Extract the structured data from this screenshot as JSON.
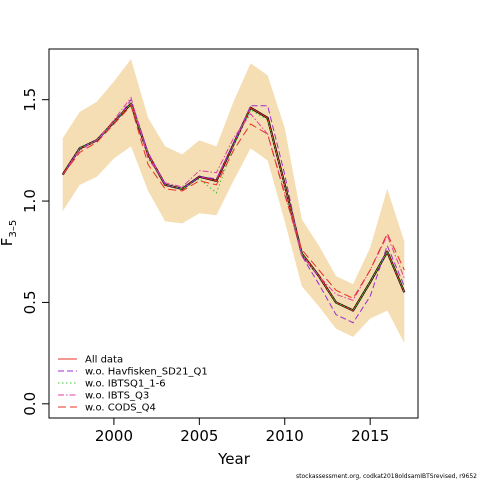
{
  "chart_data": {
    "type": "line",
    "xlabel": "Year",
    "ylabel": "F",
    "ylabel_sub": "3–5",
    "xlim": [
      1996.2,
      2017.8
    ],
    "ylim": [
      -0.07,
      1.75
    ],
    "xticks": [
      2000,
      2005,
      2010,
      2015
    ],
    "yticks": [
      0.0,
      0.5,
      1.0,
      1.5
    ],
    "ytick_labels": [
      "0.0",
      "0.5",
      "1.0",
      "1.5"
    ],
    "x": [
      1997,
      1998,
      1999,
      2000,
      2001,
      2002,
      2003,
      2004,
      2005,
      2006,
      2007,
      2008,
      2009,
      2010,
      2011,
      2012,
      2013,
      2014,
      2015,
      2016,
      2017
    ],
    "band": {
      "color": "#f5deb3",
      "upper": [
        1.31,
        1.44,
        1.49,
        1.59,
        1.7,
        1.41,
        1.27,
        1.23,
        1.3,
        1.27,
        1.49,
        1.68,
        1.62,
        1.36,
        0.91,
        0.78,
        0.63,
        0.59,
        0.77,
        1.06,
        0.8
      ],
      "lower": [
        0.95,
        1.08,
        1.12,
        1.21,
        1.27,
        1.05,
        0.9,
        0.89,
        0.94,
        0.93,
        1.1,
        1.26,
        1.2,
        0.9,
        0.58,
        0.48,
        0.37,
        0.33,
        0.42,
        0.46,
        0.3
      ]
    },
    "main_line": {
      "color": "#000000",
      "values": [
        1.13,
        1.26,
        1.3,
        1.39,
        1.48,
        1.23,
        1.08,
        1.06,
        1.12,
        1.1,
        1.28,
        1.46,
        1.41,
        1.08,
        0.74,
        0.63,
        0.5,
        0.46,
        0.6,
        0.75,
        0.55
      ]
    },
    "series": [
      {
        "name": "All data",
        "color": "#e8322a",
        "dash": "",
        "values": [
          1.13,
          1.26,
          1.3,
          1.39,
          1.48,
          1.23,
          1.08,
          1.06,
          1.12,
          1.1,
          1.28,
          1.46,
          1.41,
          1.08,
          0.74,
          0.63,
          0.5,
          0.46,
          0.6,
          0.75,
          0.55
        ]
      },
      {
        "name": "w.o. Havfisken_SD21_Q1",
        "color": "#9d2bd6",
        "dash": "6,3",
        "values": [
          1.13,
          1.26,
          1.3,
          1.38,
          1.5,
          1.24,
          1.08,
          1.06,
          1.12,
          1.11,
          1.28,
          1.47,
          1.47,
          1.13,
          0.73,
          0.59,
          0.44,
          0.4,
          0.53,
          0.78,
          0.58
        ]
      },
      {
        "name": "w.o. IBTSQ1_1-6",
        "color": "#3cc23c",
        "dash": "1.5,2.5",
        "values": [
          1.13,
          1.26,
          1.3,
          1.39,
          1.48,
          1.23,
          1.08,
          1.06,
          1.11,
          1.04,
          1.27,
          1.45,
          1.4,
          1.07,
          0.74,
          0.63,
          0.5,
          0.46,
          0.6,
          0.75,
          0.55
        ]
      },
      {
        "name": "w.o. IBTS_Q3",
        "color": "#e040a0",
        "dash": "6,2,1.5,2",
        "values": [
          1.13,
          1.25,
          1.3,
          1.4,
          1.51,
          1.21,
          1.09,
          1.07,
          1.15,
          1.14,
          1.31,
          1.43,
          1.33,
          1.04,
          0.73,
          0.63,
          0.54,
          0.51,
          0.66,
          0.83,
          0.62
        ]
      },
      {
        "name": "w.o. CODS_Q4",
        "color": "#e8322a",
        "dash": "8,4",
        "values": [
          1.13,
          1.24,
          1.29,
          1.38,
          1.47,
          1.18,
          1.06,
          1.05,
          1.1,
          1.08,
          1.25,
          1.38,
          1.33,
          1.03,
          0.76,
          0.66,
          0.56,
          0.52,
          0.66,
          0.84,
          0.66
        ]
      }
    ],
    "legend_position": "bottom-left",
    "grid": false
  },
  "footer": {
    "text": "stockassessment.org,  codkat2018oldsamIBTSrevised, r9652"
  }
}
